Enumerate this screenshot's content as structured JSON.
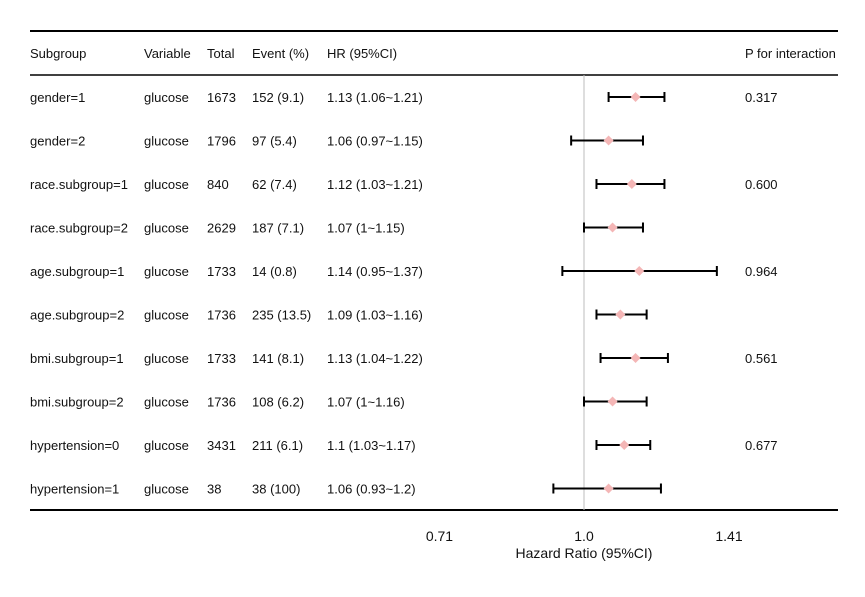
{
  "chart_data": {
    "type": "forest",
    "columns": [
      "Subgroup",
      "Variable",
      "Total",
      "Event (%)",
      "HR (95%CI)",
      "P for interaction"
    ],
    "rows": [
      {
        "subgroup": "gender=1",
        "variable": "glucose",
        "total": "1673",
        "event": "152 (9.1)",
        "hr_text": "1.13 (1.06~1.21)",
        "hr": 1.13,
        "lo": 1.06,
        "hi": 1.21,
        "p": "0.317"
      },
      {
        "subgroup": "gender=2",
        "variable": "glucose",
        "total": "1796",
        "event": "97 (5.4)",
        "hr_text": "1.06 (0.97~1.15)",
        "hr": 1.06,
        "lo": 0.97,
        "hi": 1.15,
        "p": ""
      },
      {
        "subgroup": "race.subgroup=1",
        "variable": "glucose",
        "total": "840",
        "event": "62 (7.4)",
        "hr_text": "1.12 (1.03~1.21)",
        "hr": 1.12,
        "lo": 1.03,
        "hi": 1.21,
        "p": "0.600"
      },
      {
        "subgroup": "race.subgroup=2",
        "variable": "glucose",
        "total": "2629",
        "event": "187 (7.1)",
        "hr_text": "1.07 (1~1.15)",
        "hr": 1.07,
        "lo": 1.0,
        "hi": 1.15,
        "p": ""
      },
      {
        "subgroup": "age.subgroup=1",
        "variable": "glucose",
        "total": "1733",
        "event": "14 (0.8)",
        "hr_text": "1.14 (0.95~1.37)",
        "hr": 1.14,
        "lo": 0.95,
        "hi": 1.37,
        "p": "0.964"
      },
      {
        "subgroup": "age.subgroup=2",
        "variable": "glucose",
        "total": "1736",
        "event": "235 (13.5)",
        "hr_text": "1.09 (1.03~1.16)",
        "hr": 1.09,
        "lo": 1.03,
        "hi": 1.16,
        "p": ""
      },
      {
        "subgroup": "bmi.subgroup=1",
        "variable": "glucose",
        "total": "1733",
        "event": "141 (8.1)",
        "hr_text": "1.13 (1.04~1.22)",
        "hr": 1.13,
        "lo": 1.04,
        "hi": 1.22,
        "p": "0.561"
      },
      {
        "subgroup": "bmi.subgroup=2",
        "variable": "glucose",
        "total": "1736",
        "event": "108 (6.2)",
        "hr_text": "1.07 (1~1.16)",
        "hr": 1.07,
        "lo": 1.0,
        "hi": 1.16,
        "p": ""
      },
      {
        "subgroup": "hypertension=0",
        "variable": "glucose",
        "total": "3431",
        "event": "211 (6.1)",
        "hr_text": "1.1 (1.03~1.17)",
        "hr": 1.1,
        "lo": 1.03,
        "hi": 1.17,
        "p": "0.677"
      },
      {
        "subgroup": "hypertension=1",
        "variable": "glucose",
        "total": "38",
        "event": "38 (100)",
        "hr_text": "1.06 (0.93~1.2)",
        "hr": 1.06,
        "lo": 0.93,
        "hi": 1.2,
        "p": ""
      }
    ],
    "x_ticks": [
      {
        "value": 0.71,
        "label": "0.71"
      },
      {
        "value": 1.0,
        "label": "1.0"
      },
      {
        "value": 1.41,
        "label": "1.41"
      }
    ],
    "xlim": [
      0.6,
      1.6
    ],
    "x_scale": "log",
    "reference_line": 1.0,
    "xlabel": "Hazard Ratio (95%CI)",
    "point_color": "#f4b6b6",
    "ci_color": "#000000",
    "reference_color": "#bdbdbd",
    "grid": false
  }
}
